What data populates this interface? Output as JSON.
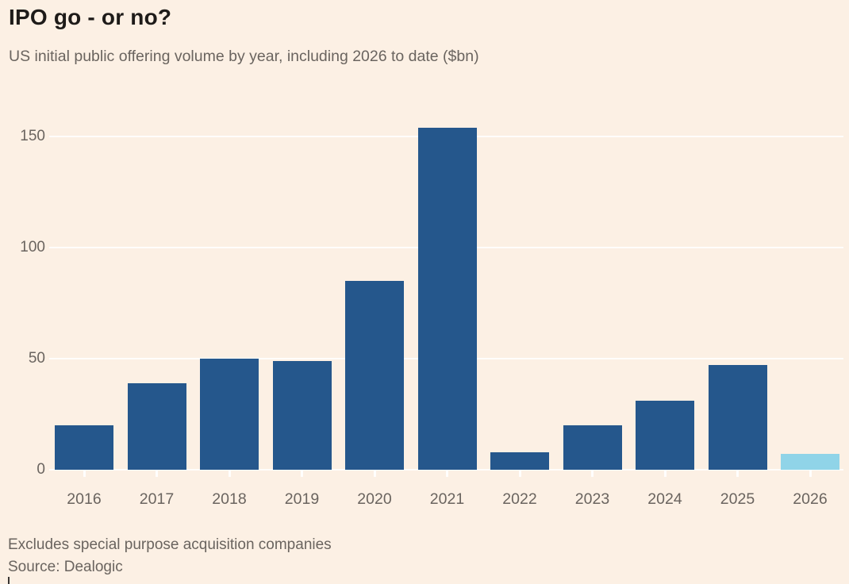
{
  "header": {
    "title": "IPO go - or no?",
    "subtitle": "US initial public offering volume by year, including 2026 to date ($bn)"
  },
  "chart_data": {
    "type": "bar",
    "title": "IPO go - or no?",
    "subtitle": "US initial public offering volume by year, including 2026 to date ($bn)",
    "categories": [
      "2016",
      "2017",
      "2018",
      "2019",
      "2020",
      "2021",
      "2022",
      "2023",
      "2024",
      "2025",
      "2026"
    ],
    "values": [
      20,
      39,
      50,
      49,
      85,
      154,
      8,
      20,
      31,
      47,
      7
    ],
    "series_note": "2026 bar is a partial year (to date) and is drawn in the highlight colour",
    "highlight_index": 10,
    "xlabel": "",
    "ylabel": "",
    "ylim": [
      0,
      160
    ],
    "yticks": [
      0,
      50,
      100,
      150
    ],
    "grid": true,
    "legend_position": "none",
    "colors": {
      "bar": "#25578C",
      "highlight_bar": "#90D4E8",
      "background": "#FCF0E4",
      "gridline": "#FFFFFF",
      "axis_text": "#6A645F",
      "title_text": "#1E1B19"
    }
  },
  "footer": {
    "note": "Excludes special purpose acquisition companies",
    "source": "Source: Dealogic"
  }
}
